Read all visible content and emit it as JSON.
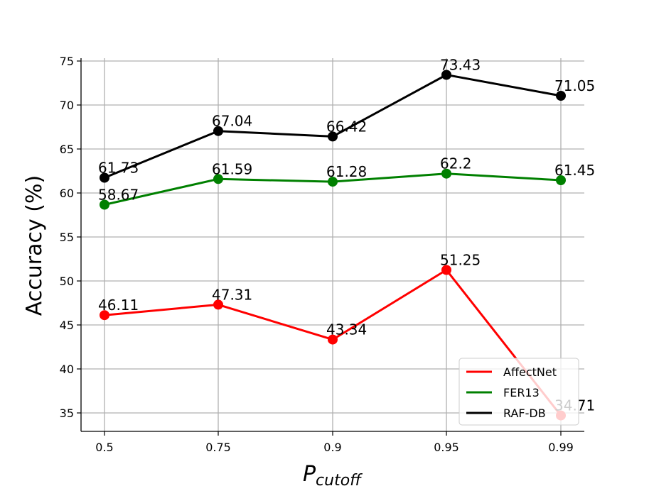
{
  "chart_data": {
    "type": "line",
    "title": "",
    "xlabel": "P",
    "xlabel_subscript": "cutoff",
    "ylabel": "Accuracy (%)",
    "categories": [
      "0.5",
      "0.75",
      "0.9",
      "0.95",
      "0.99"
    ],
    "yticks": [
      35,
      40,
      45,
      50,
      55,
      60,
      65,
      70,
      75
    ],
    "ylim": [
      33,
      75.3
    ],
    "grid": true,
    "legend_position": "bottom-right",
    "series": [
      {
        "name": "AffectNet",
        "color": "#ff0000",
        "values": [
          46.11,
          47.31,
          43.34,
          51.25,
          34.71
        ],
        "labels": [
          "46.11",
          "47.31",
          "43.34",
          "51.25",
          "34.71"
        ]
      },
      {
        "name": "FER13",
        "color": "#008000",
        "values": [
          58.67,
          61.59,
          61.28,
          62.2,
          61.45
        ],
        "labels": [
          "58.67",
          "61.59",
          "61.28",
          "62.2",
          "61.45"
        ]
      },
      {
        "name": "RAF-DB",
        "color": "#000000",
        "values": [
          61.73,
          67.04,
          66.42,
          73.43,
          71.05
        ],
        "labels": [
          "61.73",
          "67.04",
          "66.42",
          "73.43",
          "71.05"
        ]
      }
    ]
  }
}
